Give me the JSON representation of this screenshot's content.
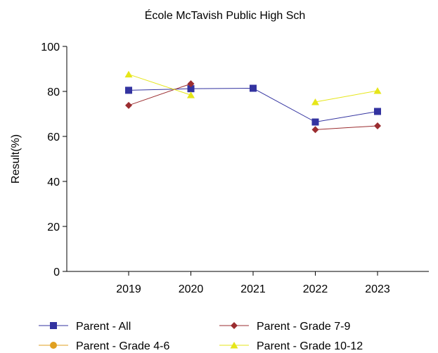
{
  "chart_data": {
    "type": "line",
    "title": "École McTavish Public High Sch",
    "xlabel": "",
    "ylabel": "Result(%)",
    "ylim": [
      0,
      100
    ],
    "yticks": [
      0,
      20,
      40,
      60,
      80,
      100
    ],
    "categories": [
      "2019",
      "2020",
      "2021",
      "2022",
      "2023"
    ],
    "grid": false,
    "legend_position": "bottom",
    "series": [
      {
        "name": "Parent - All",
        "color": "#3333a0",
        "marker": "square",
        "values": [
          80.5,
          81.2,
          81.4,
          66.4,
          71.1
        ]
      },
      {
        "name": "Parent - Grade 7-9",
        "color": "#9b2d30",
        "marker": "diamond",
        "values": [
          73.8,
          83.4,
          null,
          63.0,
          64.7
        ]
      },
      {
        "name": "Parent - Grade 4-6",
        "color": "#e0a020",
        "marker": "circle",
        "values": [
          null,
          null,
          null,
          null,
          null
        ]
      },
      {
        "name": "Parent - Grade 10-12",
        "color": "#e6e619",
        "marker": "triangle",
        "values": [
          87.6,
          78.4,
          null,
          75.3,
          80.3
        ]
      }
    ]
  }
}
